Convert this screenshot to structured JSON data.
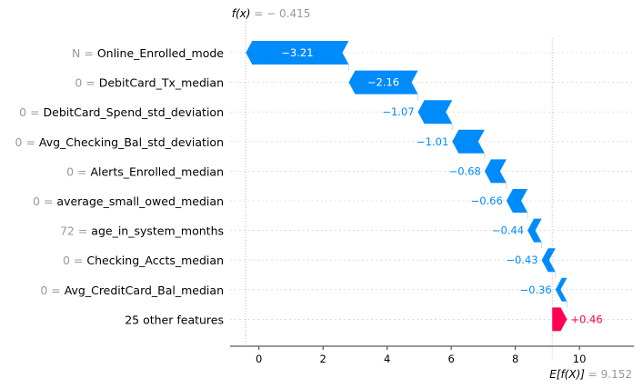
{
  "chart_data": {
    "type": "waterfall",
    "fx_label": "f(x)",
    "fx_value": "− 0.415",
    "fx_numeric": -0.415,
    "ex_label": "E[f(X)]",
    "ex_value": "9.152",
    "ex_numeric": 9.152,
    "xlim": [
      -0.9,
      11.7
    ],
    "xticks": [
      0,
      2,
      4,
      6,
      8,
      10
    ],
    "features": [
      {
        "value": "N",
        "name": "Online_Enrolled_mode",
        "contribution": -3.21,
        "label": "−3.21"
      },
      {
        "value": "0",
        "name": "DebitCard_Tx_median",
        "contribution": -2.16,
        "label": "−2.16"
      },
      {
        "value": "0",
        "name": "DebitCard_Spend_std_deviation",
        "contribution": -1.07,
        "label": "−1.07"
      },
      {
        "value": "0",
        "name": "Avg_Checking_Bal_std_deviation",
        "contribution": -1.01,
        "label": "−1.01"
      },
      {
        "value": "0",
        "name": "Alerts_Enrolled_median",
        "contribution": -0.68,
        "label": "−0.68"
      },
      {
        "value": "0",
        "name": "average_small_owed_median",
        "contribution": -0.66,
        "label": "−0.66"
      },
      {
        "value": "72",
        "name": "age_in_system_months",
        "contribution": -0.44,
        "label": "−0.44"
      },
      {
        "value": "0",
        "name": "Checking_Accts_median",
        "contribution": -0.43,
        "label": "−0.43"
      },
      {
        "value": "0",
        "name": "Avg_CreditCard_Bal_median",
        "contribution": -0.36,
        "label": "−0.36"
      },
      {
        "value": "",
        "name": "25 other features",
        "contribution": 0.46,
        "label": "+0.46"
      }
    ],
    "colors": {
      "negative": "#008bfb",
      "positive": "#ff0051",
      "value_text": "#999999",
      "grid": "#cccccc"
    }
  }
}
